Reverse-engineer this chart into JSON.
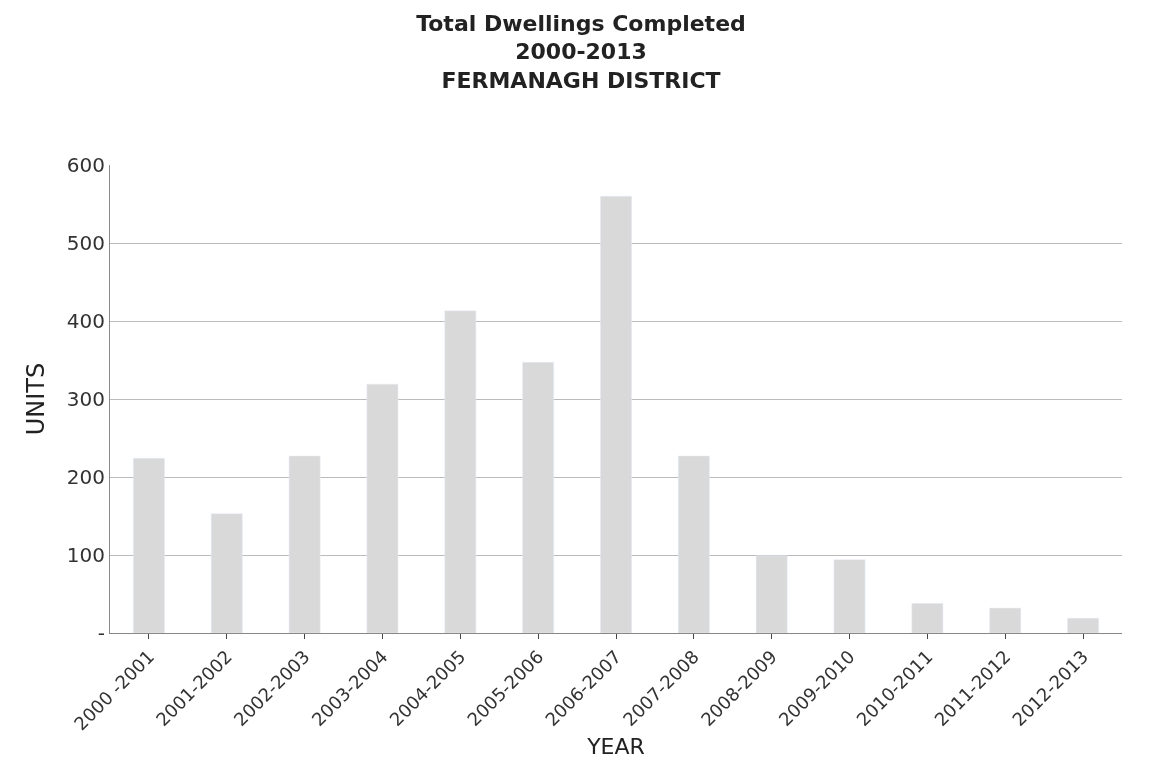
{
  "chart_data": {
    "type": "bar",
    "title": "Total Dwellings Completed\n2000-2013\nFERMANAGH DISTRICT",
    "xlabel": "YEAR",
    "ylabel": "UNITS",
    "categories": [
      "2000 -2001",
      "2001-2002",
      "2002-2003",
      "2003-2004",
      "2004-2005",
      "2005-2006",
      "2006-2007",
      "2007-2008",
      "2008-2009",
      "2009-2010",
      "2010-2011",
      "2011-2012",
      "2012-2013"
    ],
    "values": [
      224,
      153,
      227,
      319,
      413,
      347,
      560,
      227,
      99,
      94,
      38,
      32,
      19
    ],
    "color": "#d9d9d9",
    "ylim": [
      0,
      600
    ],
    "yticks": [
      {
        "value": 0,
        "label": "-"
      },
      100,
      200,
      300,
      400,
      500,
      600
    ],
    "grid": "y"
  }
}
